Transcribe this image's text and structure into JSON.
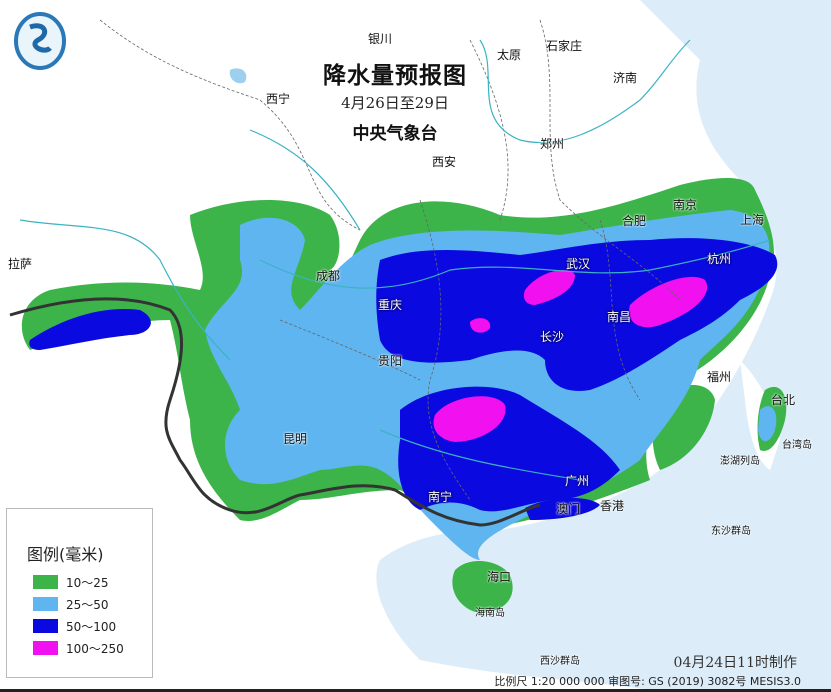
{
  "title": {
    "main": "降水量预报图",
    "period": "4月26日至29日",
    "issuer": "中央气象台"
  },
  "cities": [
    "银川",
    "太原",
    "石家庄",
    "济南",
    "西宁",
    "郑州",
    "西安",
    "合肥",
    "南京",
    "上海",
    "拉萨",
    "成都",
    "武汉",
    "杭州",
    "重庆",
    "南昌",
    "长沙",
    "贵阳",
    "福州",
    "台北",
    "昆明",
    "台湾岛",
    "澎湖列岛",
    "广州",
    "南宁",
    "澳门",
    "香港",
    "东沙群岛",
    "海口",
    "海南岛",
    "西沙群岛"
  ],
  "legend": {
    "title": "图例(毫米)",
    "items": [
      {
        "label": "10～25",
        "color": "#3cb44a"
      },
      {
        "label": "25～50",
        "color": "#5fb5f0"
      },
      {
        "label": "50～100",
        "color": "#0a0ae0"
      },
      {
        "label": "100～250",
        "color": "#f010f0"
      }
    ]
  },
  "footer": {
    "made": "04月24日11时制作",
    "scale": "比例尺 1:20 000 000  审图号: GS (2019) 3082号 MESIS3.0"
  },
  "logo_icon": "cma-logo-icon",
  "colors": {
    "sea": "#dcedf9",
    "land": "#ffffff"
  }
}
